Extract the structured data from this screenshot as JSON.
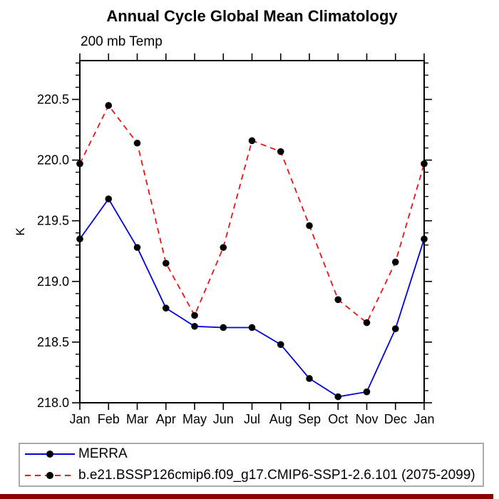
{
  "title": "Annual Cycle Global Mean Climatology",
  "subtitle": "200 mb Temp",
  "colors": {
    "merra_line": "#0000dd",
    "model_line": "#ee1111",
    "marker": "#000000",
    "axis": "#000000",
    "legend_border": "#aaaaaa",
    "footer_bar": "#8b0000"
  },
  "chart_data": {
    "type": "line",
    "categories": [
      "Jan",
      "Feb",
      "Mar",
      "Apr",
      "May",
      "Jun",
      "Jul",
      "Aug",
      "Sep",
      "Oct",
      "Nov",
      "Dec",
      "Jan"
    ],
    "xlabel": "",
    "ylabel": "K",
    "ylim": [
      218.0,
      220.82
    ],
    "yticks": [
      "218.0",
      "218.5",
      "219.0",
      "219.5",
      "220.0",
      "220.5"
    ],
    "minor_tick_step": 0.1,
    "grid": false,
    "legend_position": "bottom-left-box",
    "series": [
      {
        "name": "MERRA",
        "color": "#0000dd",
        "style": "solid",
        "marker": "black-dot",
        "values": [
          219.35,
          219.68,
          219.28,
          218.78,
          218.63,
          218.62,
          218.62,
          218.48,
          218.2,
          218.05,
          218.09,
          218.61,
          219.35
        ]
      },
      {
        "name": "b.e21.BSSP126cmip6.f09_g17.CMIP6-SSP1-2.6.101 (2075-2099)",
        "color": "#ee1111",
        "style": "dashed",
        "marker": "black-dot",
        "values": [
          219.97,
          220.45,
          220.14,
          219.15,
          218.72,
          219.28,
          220.16,
          220.07,
          219.46,
          218.85,
          218.66,
          219.16,
          219.97
        ]
      }
    ]
  }
}
